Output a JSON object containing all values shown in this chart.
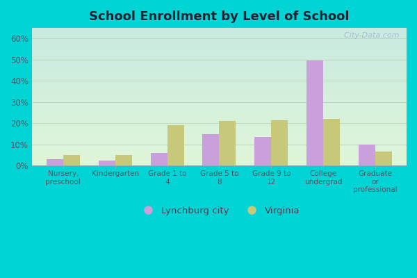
{
  "title": "School Enrollment by Level of School",
  "categories": [
    "Nursery,\npreschool",
    "Kindergarten",
    "Grade 1 to\n4",
    "Grade 5 to\n8",
    "Grade 9 to\n12",
    "College\nundergrad",
    "Graduate\nor\nprofessional"
  ],
  "lynchburg": [
    3.0,
    2.5,
    6.0,
    15.0,
    13.5,
    49.5,
    10.0
  ],
  "virginia": [
    5.0,
    5.0,
    19.0,
    21.0,
    21.5,
    22.0,
    6.5
  ],
  "lynchburg_color": "#c9a0dc",
  "virginia_color": "#c8c87a",
  "ylim": [
    0,
    65
  ],
  "yticks": [
    0,
    10,
    20,
    30,
    40,
    50,
    60
  ],
  "ytick_labels": [
    "0%",
    "10%",
    "20%",
    "30%",
    "40%",
    "50%",
    "60%"
  ],
  "legend_labels": [
    "Lynchburg city",
    "Virginia"
  ],
  "background_outer": "#00d4d4",
  "background_inner_top": "#c8eae0",
  "background_inner_bottom": "#dff5d8",
  "grid_color": "#c0d8c0",
  "watermark": "  City-Data.com",
  "bar_width": 0.32
}
